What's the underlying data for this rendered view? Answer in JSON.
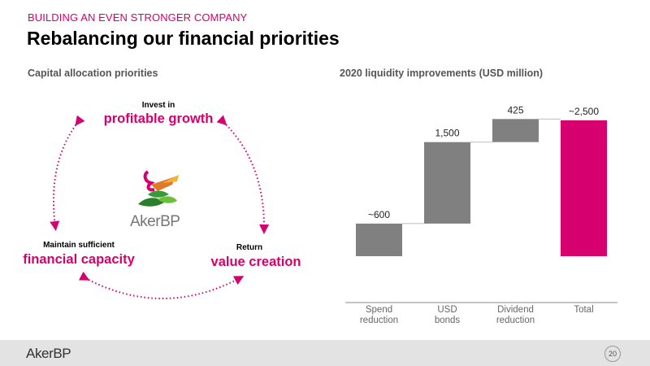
{
  "header": {
    "kicker": "BUILDING AN EVEN STRONGER COMPANY",
    "title": "Rebalancing our financial priorities"
  },
  "left_panel": {
    "subtitle": "Capital allocation priorities",
    "priorities": {
      "top": {
        "small": "Invest in",
        "big": "profitable growth"
      },
      "left": {
        "small": "Maintain sufficient",
        "big": "financial capacity"
      },
      "right": {
        "small": "Return",
        "big": "value creation"
      }
    },
    "logo_text": "AkerBP"
  },
  "right_panel": {
    "subtitle": "2020 liquidity improvements (USD million)"
  },
  "chart_data": {
    "type": "bar",
    "subtype": "waterfall",
    "categories": [
      "Spend\nreduction",
      "USD\nbonds",
      "Dividend\nreduction",
      "Total"
    ],
    "values": [
      600,
      1500,
      425,
      2500
    ],
    "data_labels": [
      "~600",
      "1,500",
      "425",
      "~2,500"
    ],
    "is_total": [
      false,
      false,
      false,
      true
    ],
    "ylim": [
      0,
      2500
    ],
    "grid": false,
    "colors": {
      "step": "#808080",
      "total": "#d6006f",
      "connector": "#bdbdbd"
    }
  },
  "footer": {
    "logo_text": "AkerBP",
    "page_number": "20"
  }
}
